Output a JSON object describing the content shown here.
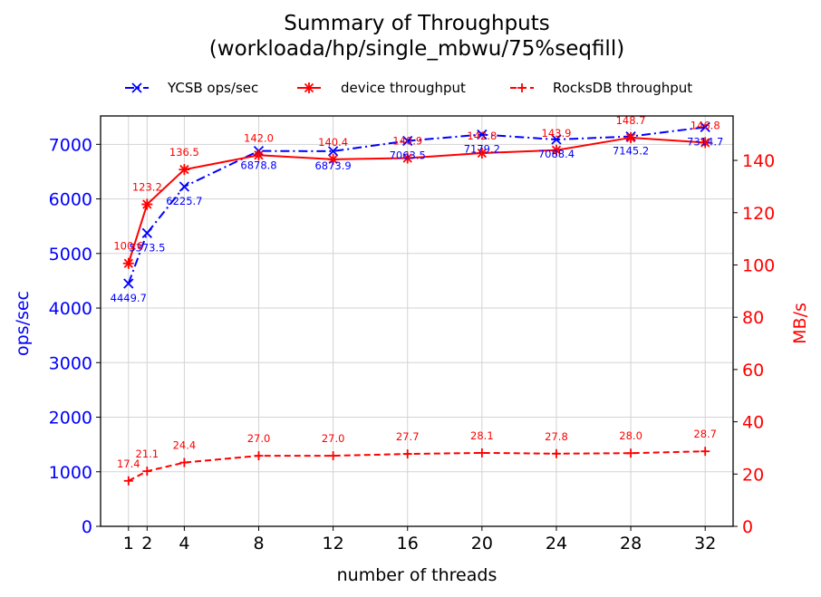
{
  "chart_data": {
    "type": "line",
    "title": "Summary of Throughputs",
    "subtitle": "(workloada/hp/single_mbwu/75%seqfill)",
    "xlabel": "number of threads",
    "ylabel_left": "ops/sec",
    "ylabel_right": "MB/s",
    "x": [
      1,
      2,
      4,
      8,
      12,
      16,
      20,
      24,
      28,
      32
    ],
    "x_ticks": [
      1,
      2,
      4,
      8,
      12,
      16,
      20,
      24,
      28,
      32
    ],
    "xlim": [
      -0.5,
      33.5
    ],
    "ylim_left": [
      0,
      7520
    ],
    "y_ticks_left": [
      0,
      1000,
      2000,
      3000,
      4000,
      5000,
      6000,
      7000
    ],
    "ylim_right": [
      0,
      157
    ],
    "y_ticks_right": [
      0,
      20,
      40,
      60,
      80,
      100,
      120,
      140
    ],
    "grid": true,
    "legend_position": "top",
    "series": [
      {
        "name": "YCSB ops/sec",
        "axis": "left",
        "color": "#0000ff",
        "line_style": "dashdot",
        "marker": "x",
        "values": [
          4449.7,
          5373.5,
          6225.7,
          6878.8,
          6873.9,
          7063.5,
          7179.2,
          7088.4,
          7145.2,
          7314.7
        ],
        "labels": [
          "4449.7",
          "5373.5",
          "6225.7",
          "6878.8",
          "6873.9",
          "7063.5",
          "7179.2",
          "7088.4",
          "7145.2",
          "7314.7"
        ]
      },
      {
        "name": "device throughput",
        "axis": "right",
        "color": "#ff0000",
        "line_style": "solid",
        "marker": "asterisk",
        "values": [
          100.6,
          123.2,
          136.5,
          142.0,
          140.4,
          140.9,
          142.8,
          143.9,
          148.7,
          146.8
        ],
        "labels": [
          "100.6",
          "123.2",
          "136.5",
          "142.0",
          "140.4",
          "140.9",
          "142.8",
          "143.9",
          "148.7",
          "146.8"
        ]
      },
      {
        "name": "RocksDB throughput",
        "axis": "right",
        "color": "#ff0000",
        "line_style": "dashed",
        "marker": "plus",
        "values": [
          17.4,
          21.1,
          24.4,
          27.0,
          27.0,
          27.7,
          28.1,
          27.8,
          28.0,
          28.7
        ],
        "labels": [
          "17.4",
          "21.1",
          "24.4",
          "27.0",
          "27.0",
          "27.7",
          "28.1",
          "27.8",
          "28.0",
          "28.7"
        ]
      }
    ]
  }
}
